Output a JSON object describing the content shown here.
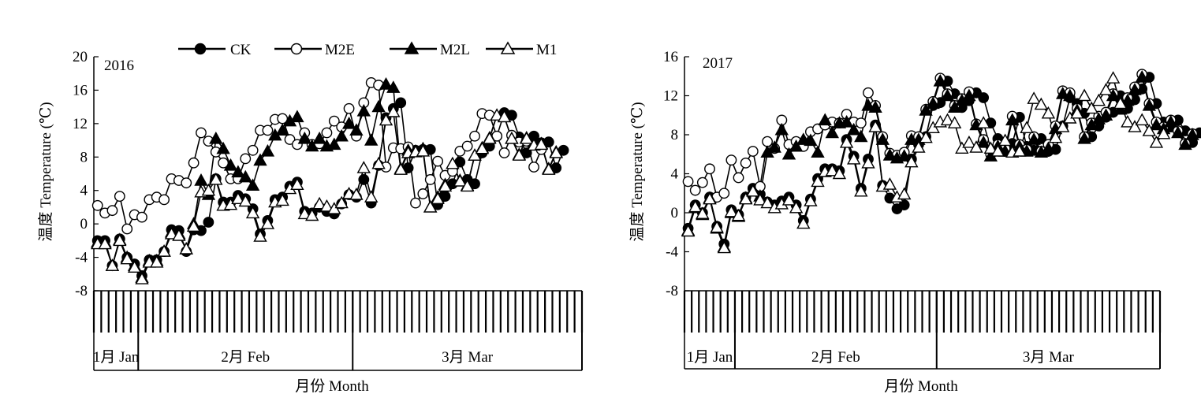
{
  "chart_data": [
    {
      "type": "line",
      "panel_label": "2016",
      "ylabel": "温度 Temperature (℃)",
      "xlabel": "月份 Month",
      "ylim": [
        -8,
        20
      ],
      "yticks": [
        -8,
        -4,
        0,
        4,
        8,
        12,
        16,
        20
      ],
      "ytick_labels": [
        "-8",
        "-4",
        "0",
        "4",
        "8",
        "12",
        "16",
        "20"
      ],
      "x_unit": "day",
      "months": [
        {
          "label": "1月 Jan",
          "start_day": 26,
          "end_day": 31
        },
        {
          "label": "2月 Feb",
          "start_day": 1,
          "end_day": 29
        },
        {
          "label": "3月 Mar",
          "start_day": 1,
          "end_day": 31
        }
      ],
      "legend": [
        "CK",
        "M2E",
        "M2L",
        "M1"
      ],
      "legend_position": "top",
      "grid": false,
      "series": [
        {
          "name": "CK",
          "marker": "filled-circle",
          "values": [
            -2,
            -2,
            -5,
            -1.8,
            -4,
            -4.8,
            -6.2,
            -4.3,
            -4.3,
            -3.3,
            -0.7,
            -0.8,
            -3.3,
            -0.7,
            -0.8,
            0.2,
            5.4,
            2.6,
            2.6,
            3.4,
            3,
            1.8,
            -1.2,
            0.4,
            2.9,
            3.2,
            4.5,
            5,
            1.5,
            1.3,
            2,
            1.5,
            1.2,
            2.4,
            3.5,
            3.2,
            5.3,
            2.5,
            7,
            12.7,
            13.8,
            14.5,
            6.7,
            8.8,
            8.9,
            8.9,
            2.3,
            3.3,
            4.8,
            7.4,
            5.3,
            4.8,
            8.5,
            9.3,
            10.5,
            13.3,
            13,
            10.4,
            8.5,
            10.5,
            9.7,
            9.8,
            6.7,
            8.8
          ]
        },
        {
          "name": "M2E",
          "marker": "open-circle",
          "values": [
            2.2,
            1.3,
            1.6,
            3.3,
            -0.6,
            1.1,
            0.8,
            2.9,
            3.2,
            2.9,
            5.4,
            5.2,
            4.9,
            7.3,
            10.9,
            9.9,
            8.6,
            7.3,
            5.4,
            5.4,
            7.8,
            8.8,
            11.2,
            11.2,
            12.5,
            12.6,
            10.1,
            9.5,
            10.9,
            9.5,
            9.6,
            10.9,
            12.3,
            11.6,
            13.8,
            10.5,
            14.5,
            16.9,
            16.6,
            6.8,
            9.1,
            9,
            9.2,
            2.5,
            3.6,
            5.3,
            7.5,
            5.8,
            6.3,
            8.7,
            9.3,
            10.5,
            13.2,
            13,
            10.5,
            8.5,
            10.6,
            9.8,
            9.9,
            6.8,
            8.9
          ]
        },
        {
          "name": "M2L",
          "marker": "filled-triangle",
          "values": [
            -2.2,
            -2.2,
            -5,
            -1.9,
            -4,
            -5,
            -6.4,
            -4.4,
            -4.4,
            -3.3,
            -1,
            -1.2,
            -3,
            0,
            5.2,
            3.5,
            10.2,
            9,
            7,
            6.2,
            5.6,
            4.6,
            7.6,
            8.7,
            10.6,
            11.2,
            12.3,
            12.8,
            10.2,
            9.3,
            10.2,
            9.3,
            9.5,
            10.5,
            12,
            11.2,
            13.5,
            10,
            14,
            16.7,
            16.3,
            6.6,
            8.8,
            8.7,
            9,
            2,
            3.2,
            4.7,
            7.2,
            5.2,
            4.6,
            8.2,
            9.1,
            10.3,
            13,
            12.8,
            10.2,
            8.3,
            10.3,
            9.5,
            9.6,
            6.6,
            8.6
          ]
        },
        {
          "name": "M1",
          "marker": "open-triangle",
          "values": [
            -2.4,
            -2.4,
            -5,
            -2,
            -4.2,
            -5.2,
            -6.6,
            -4.6,
            -4.6,
            -3.3,
            -1.2,
            -1.4,
            -3,
            -0.3,
            3.8,
            4,
            5.3,
            2.2,
            2.3,
            3,
            2.7,
            1.3,
            -1.5,
            0,
            2.6,
            2.8,
            4.2,
            4.7,
            1.2,
            1,
            2.4,
            2.1,
            1.8,
            2.5,
            3.6,
            3.5,
            6.7,
            3.2,
            7.2,
            12.4,
            13.4,
            6.5,
            8.5,
            8.6,
            8.7,
            2,
            3,
            4.5,
            7.2,
            5.1,
            4.5,
            8.2,
            9,
            10.2,
            13,
            12.8,
            10.2,
            8.2,
            10.2,
            9.4,
            9.5,
            6.5,
            8.5
          ]
        }
      ]
    },
    {
      "type": "line",
      "panel_label": "2017",
      "ylabel": "温度 Temperature (℃)",
      "xlabel": "月份 Month",
      "ylim": [
        -8,
        16
      ],
      "yticks": [
        -8,
        -4,
        0,
        4,
        8,
        12,
        16
      ],
      "ytick_labels": [
        "-8",
        "-4",
        "0",
        "4",
        "8",
        "12",
        "16"
      ],
      "x_unit": "day",
      "months": [
        {
          "label": "1月 Jan",
          "start_day": 25,
          "end_day": 31
        },
        {
          "label": "2月 Feb",
          "start_day": 1,
          "end_day": 28
        },
        {
          "label": "3月 Mar",
          "start_day": 1,
          "end_day": 31
        }
      ],
      "legend": [],
      "grid": false,
      "series": [
        {
          "name": "CK",
          "marker": "filled-circle",
          "values": [
            -1.6,
            0.8,
            0,
            1.6,
            -1.4,
            -3.2,
            0.3,
            -0.2,
            1.6,
            2.5,
            1.9,
            1.1,
            0.8,
            1.2,
            1.6,
            0.8,
            -0.8,
            1.4,
            3.5,
            4.5,
            4.5,
            4.3,
            7.5,
            5.8,
            2.5,
            5.5,
            9,
            2.8,
            1.5,
            0.4,
            0.8,
            5.5,
            7,
            7.8,
            11,
            11.3,
            13.5,
            12.2,
            10.8,
            11.5,
            12.3,
            11.8,
            9.2,
            7.6,
            6.3,
            7.1,
            9.8,
            6.8,
            6.4,
            7.6,
            6.3,
            6.5,
            8.9,
            11.8,
            11.2,
            10.2,
            7.8,
            8.9,
            9.8,
            10.3,
            12,
            10.7,
            11.6,
            12.7,
            13.9,
            11.2,
            9.3,
            8.8,
            9.5,
            8.4,
            7.2,
            8.2
          ]
        },
        {
          "name": "M2E",
          "marker": "open-circle",
          "values": [
            3.2,
            2.3,
            3.1,
            4.5,
            1.6,
            2,
            5.4,
            3.6,
            5.1,
            6.3,
            2.7,
            7.3,
            6.6,
            9.5,
            7,
            7.3,
            6.8,
            8.3,
            8.6,
            9,
            9.3,
            9.2,
            10.1,
            9.3,
            9.2,
            12.3,
            11,
            7.8,
            6.1,
            5.9,
            6.2,
            7.9,
            7.8,
            10.6,
            11.4,
            13.8,
            12.2,
            11,
            11.7,
            12.4,
            9.1,
            7.5,
            6,
            7,
            6.6,
            9.9,
            7,
            6.5,
            7.8,
            6.3,
            7,
            8.9,
            12.5,
            12.3,
            10.7,
            7.8,
            9.2,
            9.9,
            10.3,
            12.2,
            10.8,
            11.8,
            12.9,
            14.2,
            11.2,
            9.3,
            8.8,
            9.5,
            8.4,
            7.1,
            8.1
          ]
        },
        {
          "name": "M2L",
          "marker": "filled-triangle",
          "values": [
            -1.8,
            0.5,
            -0.2,
            1.5,
            -1.6,
            -3.5,
            0,
            -0.4,
            1.5,
            2.3,
            1.7,
            6.2,
            6.7,
            8.5,
            6,
            6.8,
            7.5,
            7.4,
            6.2,
            9.5,
            8.2,
            9.2,
            9.3,
            8.5,
            7.8,
            11,
            10.8,
            7.5,
            5.9,
            5.6,
            5.8,
            7.5,
            7.5,
            10.5,
            11.2,
            13.5,
            12,
            10.8,
            11.5,
            12,
            9,
            7.2,
            5.8,
            6.8,
            6.3,
            9.5,
            6.8,
            6.3,
            7.5,
            6.2,
            6.6,
            8.6,
            12.2,
            12,
            10.5,
            7.6,
            9,
            9.6,
            10,
            12,
            10.6,
            11.5,
            12.6,
            13.9,
            11,
            9,
            8.6,
            9.3,
            8.2,
            7,
            8
          ]
        },
        {
          "name": "M1",
          "marker": "open-triangle",
          "values": [
            -1.9,
            0.6,
            -0.1,
            1.4,
            -1.5,
            -3.6,
            0.1,
            -0.3,
            1.4,
            2.2,
            1.3,
            1,
            0.5,
            0.9,
            1.3,
            0.5,
            -1.1,
            1.2,
            3.2,
            4.2,
            4.3,
            4,
            7.2,
            5.5,
            2.2,
            5.1,
            8.8,
            2.7,
            2.9,
            1.6,
            1.9,
            5.2,
            6.7,
            7.7,
            8.7,
            9.3,
            9.5,
            9.2,
            6.6,
            7.2,
            6.7,
            9.2,
            6.6,
            6.3,
            7.4,
            6.2,
            6.3,
            8.7,
            11.7,
            11.1,
            10.2,
            7.7,
            8.8,
            9.7,
            10.2,
            12,
            10.7,
            11.5,
            12.6,
            13.8,
            11.2,
            9.3,
            8.8,
            9.5,
            8.4,
            7.2,
            8.1
          ]
        }
      ]
    }
  ]
}
